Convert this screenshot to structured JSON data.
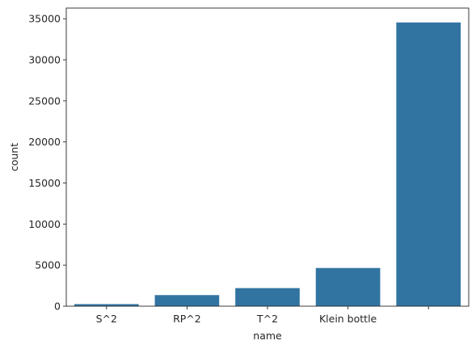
{
  "chart_data": {
    "type": "bar",
    "title": "",
    "xlabel": "name",
    "ylabel": "count",
    "categories": [
      "S^2",
      "RP^2",
      "T^2",
      "Klein bottle",
      ""
    ],
    "values": [
      250,
      1350,
      2200,
      4650,
      34550
    ],
    "ylim": [
      0,
      36300
    ],
    "yticks": [
      0,
      5000,
      10000,
      15000,
      20000,
      25000,
      30000,
      35000
    ],
    "grid": false,
    "legend": "none",
    "colors": {
      "bar": "#3274a1",
      "axis": "#262626"
    }
  }
}
